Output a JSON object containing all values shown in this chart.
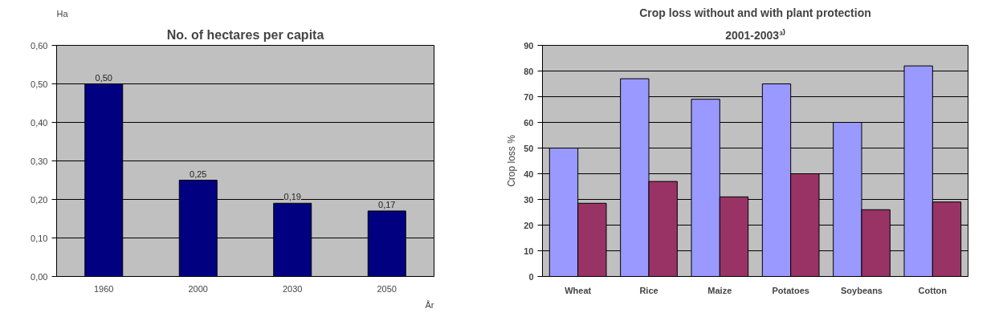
{
  "chart_data": [
    {
      "type": "bar",
      "title": "No. of hectares per capita",
      "xlabel": "År",
      "ylabel": "Ha",
      "categories": [
        "1960",
        "2000",
        "2030",
        "2050"
      ],
      "values": [
        0.5,
        0.25,
        0.19,
        0.17
      ],
      "color": "#000080",
      "value_labels": [
        "0,50",
        "0,25",
        "0,19",
        "0,17"
      ],
      "ylim": [
        0,
        0.6
      ],
      "yticks": [
        {
          "value": 0,
          "label": "0,00"
        },
        {
          "value": 0.1,
          "label": "0,10"
        },
        {
          "value": 0.2,
          "label": "0,20"
        },
        {
          "value": 0.3,
          "label": "0,30"
        },
        {
          "value": 0.4,
          "label": "0,40"
        },
        {
          "value": 0.5,
          "label": "0,50"
        },
        {
          "value": 0.6,
          "label": "0,60"
        }
      ],
      "grid": "y"
    },
    {
      "type": "bar",
      "title": "Crop loss without and with plant protection",
      "subtitle": "2001-2003³⁾",
      "ylabel": "Crop loss %",
      "categories": [
        "Wheat",
        "Rice",
        "Maize",
        "Potatoes",
        "Soybeans",
        "Cotton"
      ],
      "series": [
        {
          "color": "#9999ff",
          "values": [
            50,
            77,
            69,
            75,
            60,
            82
          ]
        },
        {
          "color": "#993366",
          "values": [
            28.5,
            37,
            31,
            40,
            26,
            29
          ]
        }
      ],
      "ylim": [
        0,
        90
      ],
      "yticks": [
        0,
        10,
        20,
        30,
        40,
        50,
        60,
        70,
        80,
        90
      ],
      "grid": "y"
    }
  ]
}
